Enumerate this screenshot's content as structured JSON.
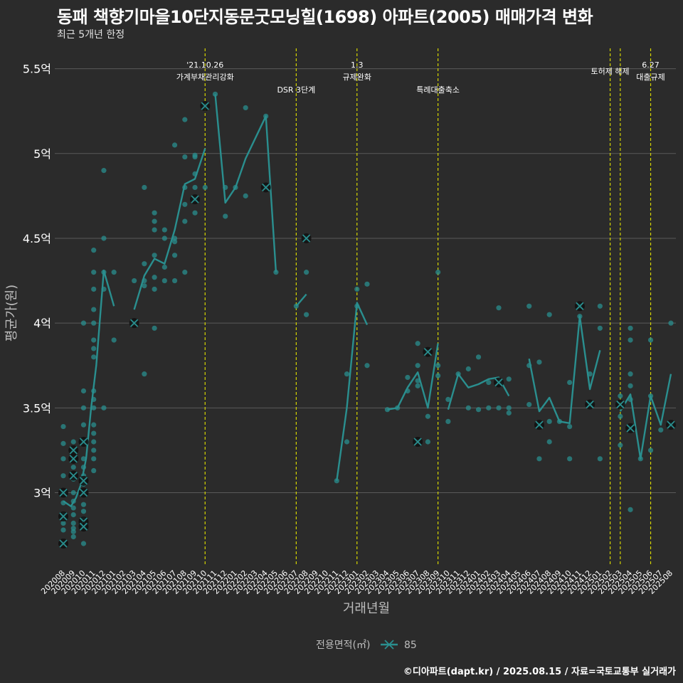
{
  "title": "동패 책향기마을10단지동문굿모닝힐(1698) 아파트(2005) 매매가격 변화",
  "subtitle": "최근 5개년 한정",
  "footer": "©디아파트(dapt.kr) / 2025.08.15 / 자료=국토교통부 실거래가",
  "colors": {
    "background": "#2b2b2b",
    "series": "#2a8f8f",
    "grid": "#5a5a5a",
    "event_line": "#d6d600",
    "axis_text": "#bdbdbd",
    "tick_text": "#ffffff",
    "marker": "#111111"
  },
  "chart_data": {
    "type": "line",
    "title": "동패 책향기마을10단지동문굿모닝힐(1698) 아파트(2005) 매매가격 변화",
    "subtitle": "최근 5개년 한정",
    "xlabel": "거래년월",
    "ylabel": "평균가(원)",
    "legend_title": "전용면적(㎡)",
    "legend_position": "bottom",
    "grid": true,
    "ylim": [
      2.57,
      5.62
    ],
    "y_ticks": [
      3.0,
      3.5,
      4.0,
      4.5,
      5.0,
      5.5
    ],
    "y_tick_labels": [
      "3억",
      "3.5억",
      "4억",
      "4.5억",
      "5억",
      "5.5억"
    ],
    "categories": [
      "202008",
      "202009",
      "202010",
      "202011",
      "202012",
      "202101",
      "202102",
      "202103",
      "202104",
      "202105",
      "202106",
      "202107",
      "202108",
      "202109",
      "202110",
      "202111",
      "202112",
      "202201",
      "202202",
      "202203",
      "202204",
      "202205",
      "202206",
      "202207",
      "202208",
      "202209",
      "202210",
      "202211",
      "202212",
      "202301",
      "202302",
      "202303",
      "202304",
      "202305",
      "202306",
      "202307",
      "202308",
      "202309",
      "202310",
      "202311",
      "202312",
      "202401",
      "202402",
      "202403",
      "202404",
      "202405",
      "202406",
      "202407",
      "202408",
      "202409",
      "202410",
      "202411",
      "202412",
      "202501",
      "202502",
      "202503",
      "202504",
      "202505",
      "202506",
      "202507",
      "202508"
    ],
    "events": [
      {
        "date": "202110",
        "label": "'21.10.26\n가계부채관리강화"
      },
      {
        "date": "202207",
        "label": "DSR 3단계"
      },
      {
        "date": "202301",
        "label": "1.3\n규제완화"
      },
      {
        "date": "202309",
        "label": "특례대출축소"
      },
      {
        "date": "202502",
        "label": "토허제 해제"
      },
      {
        "date": "202503",
        "label": ""
      },
      {
        "date": "202506",
        "label": "6.27\n대출규제"
      }
    ],
    "series": [
      {
        "name": "85",
        "line": [
          [
            "202008",
            2.95
          ],
          [
            "202009a",
            2.92
          ],
          [
            "202009b",
            2.97
          ],
          [
            "202010a",
            3.05
          ],
          [
            "202010b",
            3.2
          ],
          [
            "202011a",
            3.5
          ],
          [
            "202011b",
            3.75
          ],
          [
            "202012",
            4.31
          ],
          [
            "202101",
            4.1
          ],
          null,
          [
            "202103",
            4.08
          ],
          [
            "202104",
            4.28
          ],
          [
            "202105",
            4.38
          ],
          [
            "202106",
            4.35
          ],
          [
            "202107",
            4.55
          ],
          [
            "202108",
            4.82
          ],
          [
            "202109",
            4.85
          ],
          [
            "202110",
            5.03
          ],
          null,
          [
            "202111",
            5.35
          ],
          [
            "202112",
            4.71
          ],
          [
            "202201",
            4.8
          ],
          [
            "202202",
            4.97
          ],
          [
            "202204",
            5.22
          ],
          [
            "202205",
            4.3
          ],
          null,
          [
            "202207",
            4.1
          ],
          [
            "202208",
            4.17
          ],
          null,
          [
            "202211",
            3.07
          ],
          [
            "202212",
            3.5
          ],
          [
            "202301",
            4.12
          ],
          [
            "202302",
            3.99
          ],
          null,
          [
            "202304",
            3.49
          ],
          [
            "202305",
            3.5
          ],
          [
            "202306",
            3.62
          ],
          [
            "202307",
            3.71
          ],
          [
            "202308",
            3.5
          ],
          [
            "202309",
            3.88
          ],
          null,
          [
            "202310",
            3.49
          ],
          [
            "202311",
            3.7
          ],
          [
            "202312",
            3.62
          ],
          [
            "202401",
            3.64
          ],
          [
            "202402",
            3.67
          ],
          [
            "202403",
            3.68
          ],
          [
            "202404",
            3.57
          ],
          null,
          [
            "202406",
            3.79
          ],
          [
            "202407",
            3.48
          ],
          [
            "202408",
            3.56
          ],
          [
            "202409",
            3.42
          ],
          [
            "202410",
            3.41
          ],
          [
            "202411",
            4.04
          ],
          [
            "202412",
            3.61
          ],
          [
            "202501",
            3.84
          ],
          null,
          [
            "202503",
            3.48
          ],
          [
            "202504",
            3.58
          ],
          [
            "202505",
            3.2
          ],
          [
            "202506",
            3.57
          ],
          [
            "202507",
            3.4
          ],
          [
            "202508",
            3.7
          ]
        ],
        "points": [
          [
            "202008",
            3.39
          ],
          [
            "202008",
            3.29
          ],
          [
            "202008",
            3.2
          ],
          [
            "202008",
            3.1
          ],
          [
            "202008",
            3.0
          ],
          [
            "202008",
            2.94
          ],
          [
            "202008",
            2.87
          ],
          [
            "202008",
            2.82
          ],
          [
            "202008",
            2.78
          ],
          [
            "202008",
            2.7
          ],
          [
            "202008",
            2.85
          ],
          [
            "202009",
            3.3
          ],
          [
            "202009",
            3.25
          ],
          [
            "202009",
            3.2
          ],
          [
            "202009",
            3.15
          ],
          [
            "202009",
            3.08
          ],
          [
            "202009",
            3.0
          ],
          [
            "202009",
            2.95
          ],
          [
            "202009",
            2.91
          ],
          [
            "202009",
            2.87
          ],
          [
            "202009",
            2.82
          ],
          [
            "202009",
            2.79
          ],
          [
            "202009",
            2.77
          ],
          [
            "202009",
            2.74
          ],
          [
            "202010",
            4.0
          ],
          [
            "202010",
            3.6
          ],
          [
            "202010",
            3.5
          ],
          [
            "202010",
            3.4
          ],
          [
            "202010",
            3.3
          ],
          [
            "202010",
            3.2
          ],
          [
            "202010",
            3.15
          ],
          [
            "202010",
            3.1
          ],
          [
            "202010",
            3.05
          ],
          [
            "202010",
            3.0
          ],
          [
            "202010",
            2.93
          ],
          [
            "202010",
            2.89
          ],
          [
            "202010",
            2.84
          ],
          [
            "202010",
            2.8
          ],
          [
            "202010",
            2.7
          ],
          [
            "202011",
            4.43
          ],
          [
            "202011",
            4.3
          ],
          [
            "202011",
            4.2
          ],
          [
            "202011",
            4.08
          ],
          [
            "202011",
            4.0
          ],
          [
            "202011",
            3.9
          ],
          [
            "202011",
            3.85
          ],
          [
            "202011",
            3.8
          ],
          [
            "202011",
            3.6
          ],
          [
            "202011",
            3.55
          ],
          [
            "202011",
            3.5
          ],
          [
            "202011",
            3.4
          ],
          [
            "202011",
            3.35
          ],
          [
            "202011",
            3.3
          ],
          [
            "202011",
            3.25
          ],
          [
            "202011",
            3.2
          ],
          [
            "202011",
            3.13
          ],
          [
            "202012",
            4.9
          ],
          [
            "202012",
            4.5
          ],
          [
            "202012",
            4.3
          ],
          [
            "202012",
            4.2
          ],
          [
            "202012",
            3.5
          ],
          [
            "202101",
            4.3
          ],
          [
            "202101",
            3.9
          ],
          [
            "202103",
            4.25
          ],
          [
            "202103",
            4.0
          ],
          [
            "202104",
            4.8
          ],
          [
            "202104",
            4.35
          ],
          [
            "202104",
            4.25
          ],
          [
            "202104",
            4.22
          ],
          [
            "202104",
            3.7
          ],
          [
            "202105",
            4.65
          ],
          [
            "202105",
            4.6
          ],
          [
            "202105",
            4.55
          ],
          [
            "202105",
            4.4
          ],
          [
            "202105",
            4.27
          ],
          [
            "202105",
            4.2
          ],
          [
            "202105",
            3.97
          ],
          [
            "202106",
            4.55
          ],
          [
            "202106",
            4.5
          ],
          [
            "202106",
            4.33
          ],
          [
            "202106",
            4.25
          ],
          [
            "202107",
            5.05
          ],
          [
            "202107",
            4.5
          ],
          [
            "202107",
            4.48
          ],
          [
            "202107",
            4.4
          ],
          [
            "202107",
            4.25
          ],
          [
            "202108",
            5.2
          ],
          [
            "202108",
            4.98
          ],
          [
            "202108",
            4.8
          ],
          [
            "202108",
            4.7
          ],
          [
            "202108",
            4.6
          ],
          [
            "202108",
            4.3
          ],
          [
            "202109",
            4.99
          ],
          [
            "202109",
            4.98
          ],
          [
            "202109",
            4.88
          ],
          [
            "202109",
            4.8
          ],
          [
            "202109",
            4.73
          ],
          [
            "202109",
            4.65
          ],
          [
            "202110",
            5.28
          ],
          [
            "202110",
            4.8
          ],
          [
            "202111",
            5.35
          ],
          [
            "202112",
            4.8
          ],
          [
            "202112",
            4.63
          ],
          [
            "202201",
            4.8
          ],
          [
            "202202",
            4.75
          ],
          [
            "202202",
            5.27
          ],
          [
            "202204",
            5.22
          ],
          [
            "202204",
            4.8
          ],
          [
            "202205",
            4.3
          ],
          [
            "202207",
            4.1
          ],
          [
            "202208",
            4.5
          ],
          [
            "202208",
            4.3
          ],
          [
            "202208",
            4.05
          ],
          [
            "202211",
            3.07
          ],
          [
            "202212",
            3.7
          ],
          [
            "202212",
            3.3
          ],
          [
            "202301",
            4.2
          ],
          [
            "202301",
            4.1
          ],
          [
            "202302",
            4.23
          ],
          [
            "202302",
            3.75
          ],
          [
            "202304",
            3.49
          ],
          [
            "202305",
            3.5
          ],
          [
            "202306",
            3.68
          ],
          [
            "202306",
            3.6
          ],
          [
            "202307",
            3.88
          ],
          [
            "202307",
            3.75
          ],
          [
            "202307",
            3.66
          ],
          [
            "202307",
            3.63
          ],
          [
            "202307",
            3.3
          ],
          [
            "202308",
            3.83
          ],
          [
            "202308",
            3.45
          ],
          [
            "202308",
            3.3
          ],
          [
            "202309",
            4.3
          ],
          [
            "202309",
            3.75
          ],
          [
            "202309",
            3.69
          ],
          [
            "202310",
            3.55
          ],
          [
            "202310",
            3.42
          ],
          [
            "202311",
            3.7
          ],
          [
            "202312",
            3.73
          ],
          [
            "202312",
            3.5
          ],
          [
            "202401",
            3.8
          ],
          [
            "202401",
            3.49
          ],
          [
            "202402",
            3.65
          ],
          [
            "202402",
            3.5
          ],
          [
            "202403",
            4.09
          ],
          [
            "202403",
            3.65
          ],
          [
            "202403",
            3.5
          ],
          [
            "202404",
            3.67
          ],
          [
            "202404",
            3.5
          ],
          [
            "202404",
            3.47
          ],
          [
            "202406",
            4.1
          ],
          [
            "202406",
            3.75
          ],
          [
            "202406",
            3.52
          ],
          [
            "202407",
            3.77
          ],
          [
            "202407",
            3.4
          ],
          [
            "202407",
            3.2
          ],
          [
            "202408",
            4.05
          ],
          [
            "202408",
            3.42
          ],
          [
            "202408",
            3.3
          ],
          [
            "202409",
            3.42
          ],
          [
            "202410",
            3.65
          ],
          [
            "202410",
            3.39
          ],
          [
            "202410",
            3.2
          ],
          [
            "202411",
            4.1
          ],
          [
            "202411",
            4.04
          ],
          [
            "202412",
            3.7
          ],
          [
            "202412",
            3.52
          ],
          [
            "202501",
            4.1
          ],
          [
            "202501",
            3.97
          ],
          [
            "202501",
            3.2
          ],
          [
            "202503",
            3.57
          ],
          [
            "202503",
            3.45
          ],
          [
            "202503",
            3.28
          ],
          [
            "202504",
            3.97
          ],
          [
            "202504",
            3.9
          ],
          [
            "202504",
            3.7
          ],
          [
            "202504",
            3.63
          ],
          [
            "202504",
            3.55
          ],
          [
            "202504",
            3.38
          ],
          [
            "202504",
            2.9
          ],
          [
            "202505",
            3.2
          ],
          [
            "202506",
            3.9
          ],
          [
            "202506",
            3.57
          ],
          [
            "202506",
            3.25
          ],
          [
            "202507",
            3.37
          ],
          [
            "202508",
            4.0
          ],
          [
            "202508",
            3.4
          ]
        ],
        "cross_markers": [
          [
            "202008",
            3.0
          ],
          [
            "202008",
            2.86
          ],
          [
            "202008",
            2.7
          ],
          [
            "202009",
            3.25
          ],
          [
            "202009",
            3.2
          ],
          [
            "202009",
            3.1
          ],
          [
            "202010",
            3.3
          ],
          [
            "202010",
            3.0
          ],
          [
            "202010",
            3.07
          ],
          [
            "202010",
            2.83
          ],
          [
            "202010",
            2.8
          ],
          [
            "202103",
            4.0
          ],
          [
            "202109",
            4.73
          ],
          [
            "202110",
            5.28
          ],
          [
            "202204",
            4.8
          ],
          [
            "202208",
            4.5
          ],
          [
            "202307",
            3.3
          ],
          [
            "202308",
            3.83
          ],
          [
            "202403",
            3.65
          ],
          [
            "202407",
            3.4
          ],
          [
            "202411",
            4.1
          ],
          [
            "202412",
            3.52
          ],
          [
            "202503",
            3.52
          ],
          [
            "202504",
            3.38
          ],
          [
            "202508",
            3.4
          ]
        ]
      }
    ]
  }
}
